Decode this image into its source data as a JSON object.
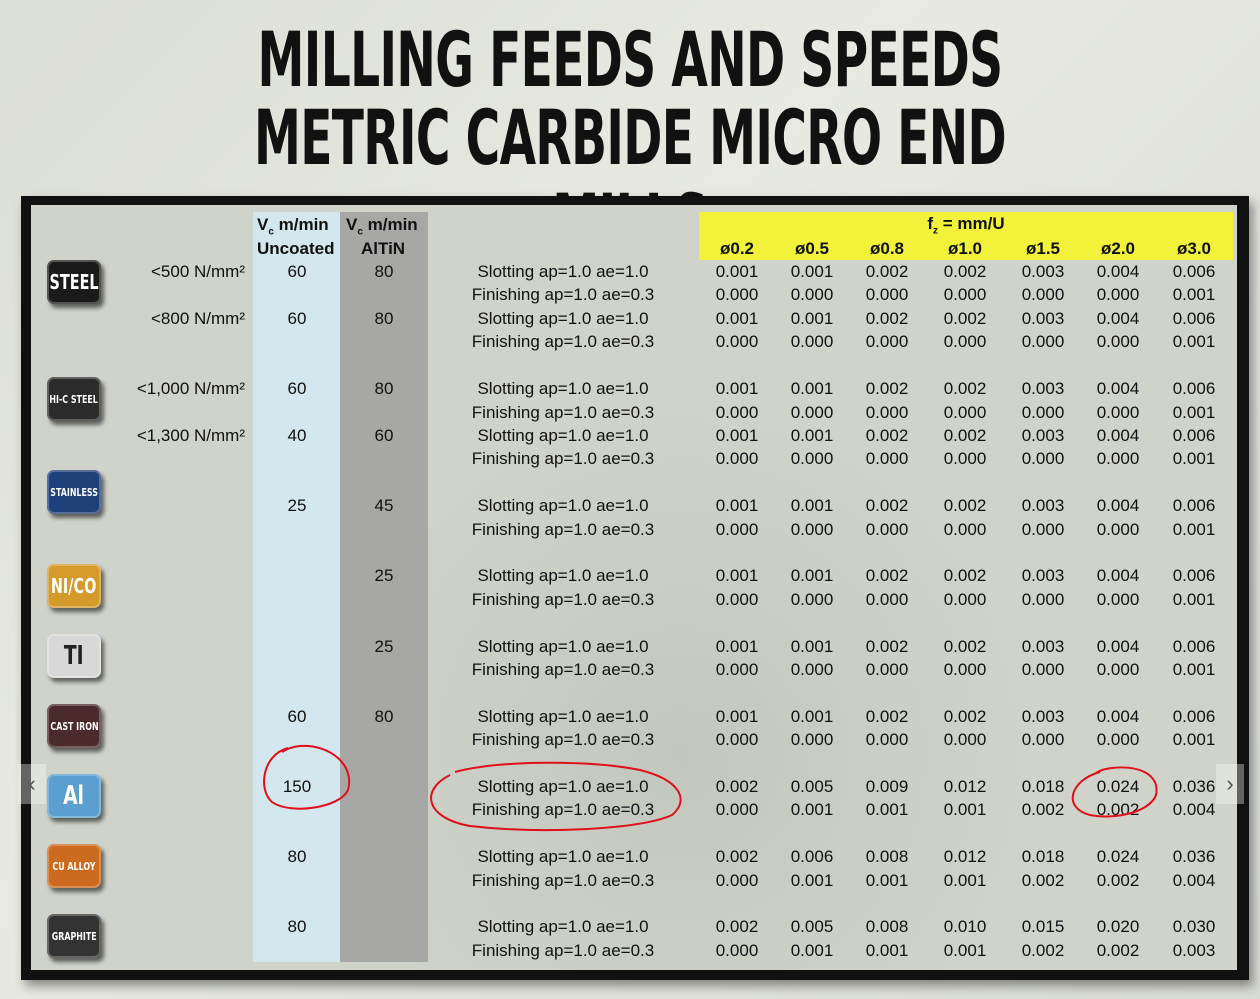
{
  "title": {
    "line1": "MILLING FEEDS AND SPEEDS",
    "line2": "METRIC CARBIDE MICRO END MILLS"
  },
  "headers": {
    "vc_uncoated_1": "V",
    "vc_uncoated_sub": "c",
    "vc_uncoated_2": " m/min",
    "uncoated": "Uncoated",
    "vc_altin_1": "V",
    "vc_altin_sub": "c",
    "vc_altin_2": " m/min",
    "altin": "AlTiN",
    "fz_1": "f",
    "fz_sub": "z",
    "fz_2": " = mm/U",
    "diameters": [
      "ø0.2",
      "ø0.5",
      "ø0.8",
      "ø1.0",
      "ø1.5",
      "ø2.0",
      "ø3.0"
    ]
  },
  "nav": {
    "prev": "‹",
    "next": "›"
  },
  "materials": [
    {
      "label": "STEEL",
      "color": "#1a1a1a"
    },
    {
      "label": "HI-C STEEL",
      "color": "#2b2b2b"
    },
    {
      "label": "STAINLESS",
      "color": "#1f3f7a"
    },
    {
      "label": "NI/CO",
      "color": "#d49a2a"
    },
    {
      "label": "TI",
      "color": "#d8d8d8"
    },
    {
      "label": "CAST IRON",
      "color": "#4a2a2a"
    },
    {
      "label": "Al",
      "color": "#5b9fd0"
    },
    {
      "label": "CU ALLOY",
      "color": "#cc6a1f"
    },
    {
      "label": "GRAPHITE",
      "color": "#333333"
    }
  ],
  "strengths": [
    "<500 N/mm²",
    "<800 N/mm²",
    "<1,000 N/mm²",
    "<1,300 N/mm²"
  ],
  "vc_uncoated": [
    "60",
    "60",
    "60",
    "40",
    "25",
    "",
    "",
    "60",
    "150",
    "80",
    "80"
  ],
  "vc_altin": [
    "80",
    "80",
    "80",
    "60",
    "45",
    "25",
    "25",
    "80",
    "",
    "",
    ""
  ],
  "ops": {
    "slot": "Slotting ap=1.0 ae=1.0",
    "fin": "Finishing ap=1.0 ae=0.3"
  },
  "rows": [
    [
      "0.001",
      "0.001",
      "0.002",
      "0.002",
      "0.003",
      "0.004",
      "0.006"
    ],
    [
      "0.000",
      "0.000",
      "0.000",
      "0.000",
      "0.000",
      "0.000",
      "0.001"
    ],
    [
      "0.001",
      "0.001",
      "0.002",
      "0.002",
      "0.003",
      "0.004",
      "0.006"
    ],
    [
      "0.000",
      "0.000",
      "0.000",
      "0.000",
      "0.000",
      "0.000",
      "0.001"
    ],
    [
      "0.001",
      "0.001",
      "0.002",
      "0.002",
      "0.003",
      "0.004",
      "0.006"
    ],
    [
      "0.000",
      "0.000",
      "0.000",
      "0.000",
      "0.000",
      "0.000",
      "0.001"
    ],
    [
      "0.001",
      "0.001",
      "0.002",
      "0.002",
      "0.003",
      "0.004",
      "0.006"
    ],
    [
      "0.000",
      "0.000",
      "0.000",
      "0.000",
      "0.000",
      "0.000",
      "0.001"
    ],
    [
      "0.001",
      "0.001",
      "0.002",
      "0.002",
      "0.003",
      "0.004",
      "0.006"
    ],
    [
      "0.000",
      "0.000",
      "0.000",
      "0.000",
      "0.000",
      "0.000",
      "0.001"
    ],
    [
      "0.001",
      "0.001",
      "0.002",
      "0.002",
      "0.003",
      "0.004",
      "0.006"
    ],
    [
      "0.000",
      "0.000",
      "0.000",
      "0.000",
      "0.000",
      "0.000",
      "0.001"
    ],
    [
      "0.001",
      "0.001",
      "0.002",
      "0.002",
      "0.003",
      "0.004",
      "0.006"
    ],
    [
      "0.000",
      "0.000",
      "0.000",
      "0.000",
      "0.000",
      "0.000",
      "0.001"
    ],
    [
      "0.001",
      "0.001",
      "0.002",
      "0.002",
      "0.003",
      "0.004",
      "0.006"
    ],
    [
      "0.000",
      "0.000",
      "0.000",
      "0.000",
      "0.000",
      "0.000",
      "0.001"
    ],
    [
      "0.002",
      "0.005",
      "0.009",
      "0.012",
      "0.018",
      "0.024",
      "0.036"
    ],
    [
      "0.000",
      "0.001",
      "0.001",
      "0.001",
      "0.002",
      "0.002",
      "0.004"
    ],
    [
      "0.002",
      "0.006",
      "0.008",
      "0.012",
      "0.018",
      "0.024",
      "0.036"
    ],
    [
      "0.000",
      "0.001",
      "0.001",
      "0.001",
      "0.002",
      "0.002",
      "0.004"
    ],
    [
      "0.002",
      "0.005",
      "0.008",
      "0.010",
      "0.015",
      "0.020",
      "0.030"
    ],
    [
      "0.000",
      "0.001",
      "0.001",
      "0.001",
      "0.002",
      "0.002",
      "0.003"
    ]
  ],
  "annotation_color": "#e0101a"
}
